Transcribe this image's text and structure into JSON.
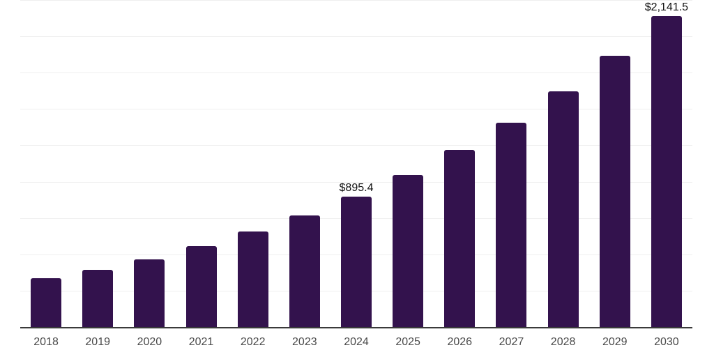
{
  "chart_data": {
    "type": "bar",
    "title": "",
    "xlabel": "",
    "ylabel": "",
    "categories": [
      "2018",
      "2019",
      "2020",
      "2021",
      "2022",
      "2023",
      "2024",
      "2025",
      "2026",
      "2027",
      "2028",
      "2029",
      "2030"
    ],
    "values": [
      338,
      395,
      466,
      557,
      656,
      768,
      895.4,
      1046,
      1220,
      1407,
      1622,
      1867,
      2141.5
    ],
    "value_labels": {
      "2024": "$895.4",
      "2030": "$2,141.5"
    },
    "ylim": [
      0,
      2250
    ],
    "gridline_step": 250,
    "grid": true,
    "legend_position": "none",
    "colors": {
      "bar": "#33124d",
      "axis_line": "#3a3a3a",
      "gridline": "#efefef",
      "tick_label": "#4a4a4a",
      "value_label": "#111111",
      "background": "#ffffff"
    }
  }
}
